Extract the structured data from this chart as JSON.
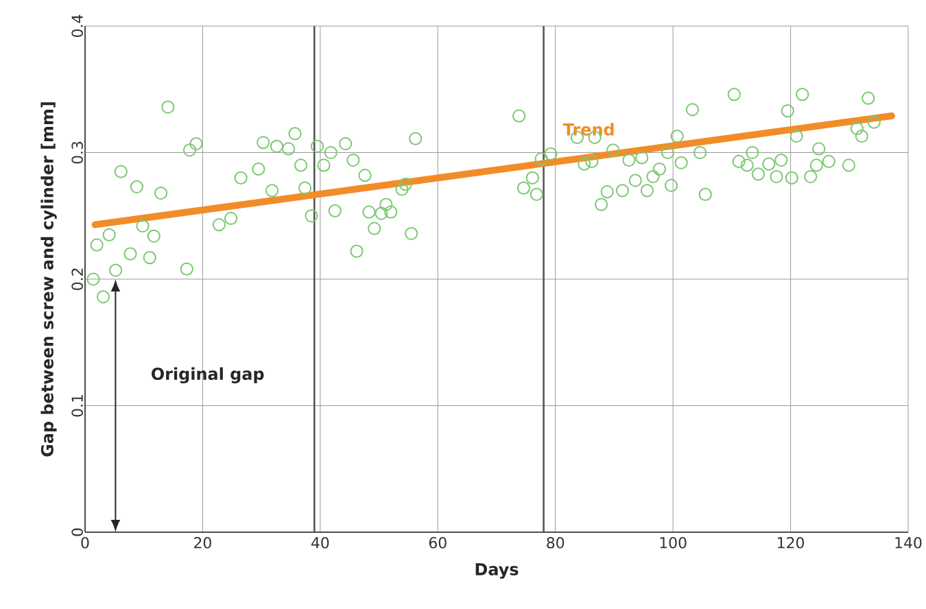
{
  "chart_data": {
    "type": "scatter",
    "xlabel": "Days",
    "ylabel": "Gap between screw and cylinder [mm]",
    "xlim": [
      0,
      140
    ],
    "ylim": [
      0,
      0.4
    ],
    "xticks": [
      0,
      20,
      40,
      60,
      80,
      100,
      120,
      140
    ],
    "yticks": [
      0,
      0.1,
      0.2,
      0.3,
      0.4
    ],
    "grid": true,
    "marker": "circle",
    "ref_lines": [
      {
        "axis": "x",
        "value": 39,
        "color": "#555555"
      },
      {
        "axis": "x",
        "value": 78,
        "color": "#555555"
      }
    ],
    "annotations": [
      "Original gap"
    ],
    "series": [
      {
        "color": "#7dc873",
        "x": [
          1.4,
          2.0,
          3.1,
          4.1,
          5.2,
          6.1,
          7.7,
          8.8,
          9.8,
          11.0,
          11.7,
          12.9,
          14.1,
          17.3,
          17.8,
          18.9,
          22.8,
          24.8,
          26.5,
          29.5,
          30.3,
          31.8,
          32.6,
          34.6,
          35.7,
          36.7,
          37.4,
          38.5,
          39.5,
          40.6,
          41.8,
          42.5,
          44.3,
          45.6,
          46.2,
          47.6,
          48.3,
          49.2,
          50.4,
          51.2,
          52.0,
          53.9,
          54.5,
          55.5,
          56.2,
          73.8,
          74.6,
          76.1,
          76.8,
          77.6,
          79.2,
          83.7,
          84.9,
          86.2,
          86.7,
          87.8,
          88.8,
          89.8,
          91.4,
          92.5,
          93.6,
          94.7,
          95.6,
          96.6,
          97.7,
          99.1,
          99.7,
          100.7,
          101.4,
          103.3,
          104.6,
          105.5,
          110.4,
          111.2,
          112.6,
          113.5,
          114.5,
          116.3,
          117.6,
          118.4,
          119.5,
          120.2,
          121.0,
          122.0,
          123.4,
          124.4,
          124.8,
          126.5,
          129.9,
          131.3,
          132.1,
          133.2,
          134.2
        ],
        "values": [
          0.2,
          0.227,
          0.186,
          0.235,
          0.207,
          0.285,
          0.22,
          0.273,
          0.242,
          0.217,
          0.234,
          0.268,
          0.336,
          0.208,
          0.302,
          0.307,
          0.243,
          0.248,
          0.28,
          0.287,
          0.308,
          0.27,
          0.305,
          0.303,
          0.315,
          0.29,
          0.272,
          0.25,
          0.305,
          0.29,
          0.3,
          0.254,
          0.307,
          0.294,
          0.222,
          0.282,
          0.253,
          0.24,
          0.252,
          0.259,
          0.253,
          0.271,
          0.275,
          0.236,
          0.311,
          0.329,
          0.272,
          0.28,
          0.267,
          0.295,
          0.299,
          0.312,
          0.291,
          0.293,
          0.312,
          0.259,
          0.269,
          0.302,
          0.27,
          0.294,
          0.278,
          0.296,
          0.27,
          0.281,
          0.287,
          0.3,
          0.274,
          0.313,
          0.292,
          0.334,
          0.3,
          0.267,
          0.346,
          0.293,
          0.29,
          0.3,
          0.283,
          0.291,
          0.281,
          0.294,
          0.333,
          0.28,
          0.313,
          0.346,
          0.281,
          0.29,
          0.303,
          0.293,
          0.29,
          0.319,
          0.313,
          0.343,
          0.324
        ]
      },
      {
        "type": "line",
        "name": "Trend",
        "marker": "none",
        "color": "#f28c28",
        "x": [
          1.7,
          137.2
        ],
        "values": [
          0.243,
          0.329
        ]
      }
    ]
  }
}
